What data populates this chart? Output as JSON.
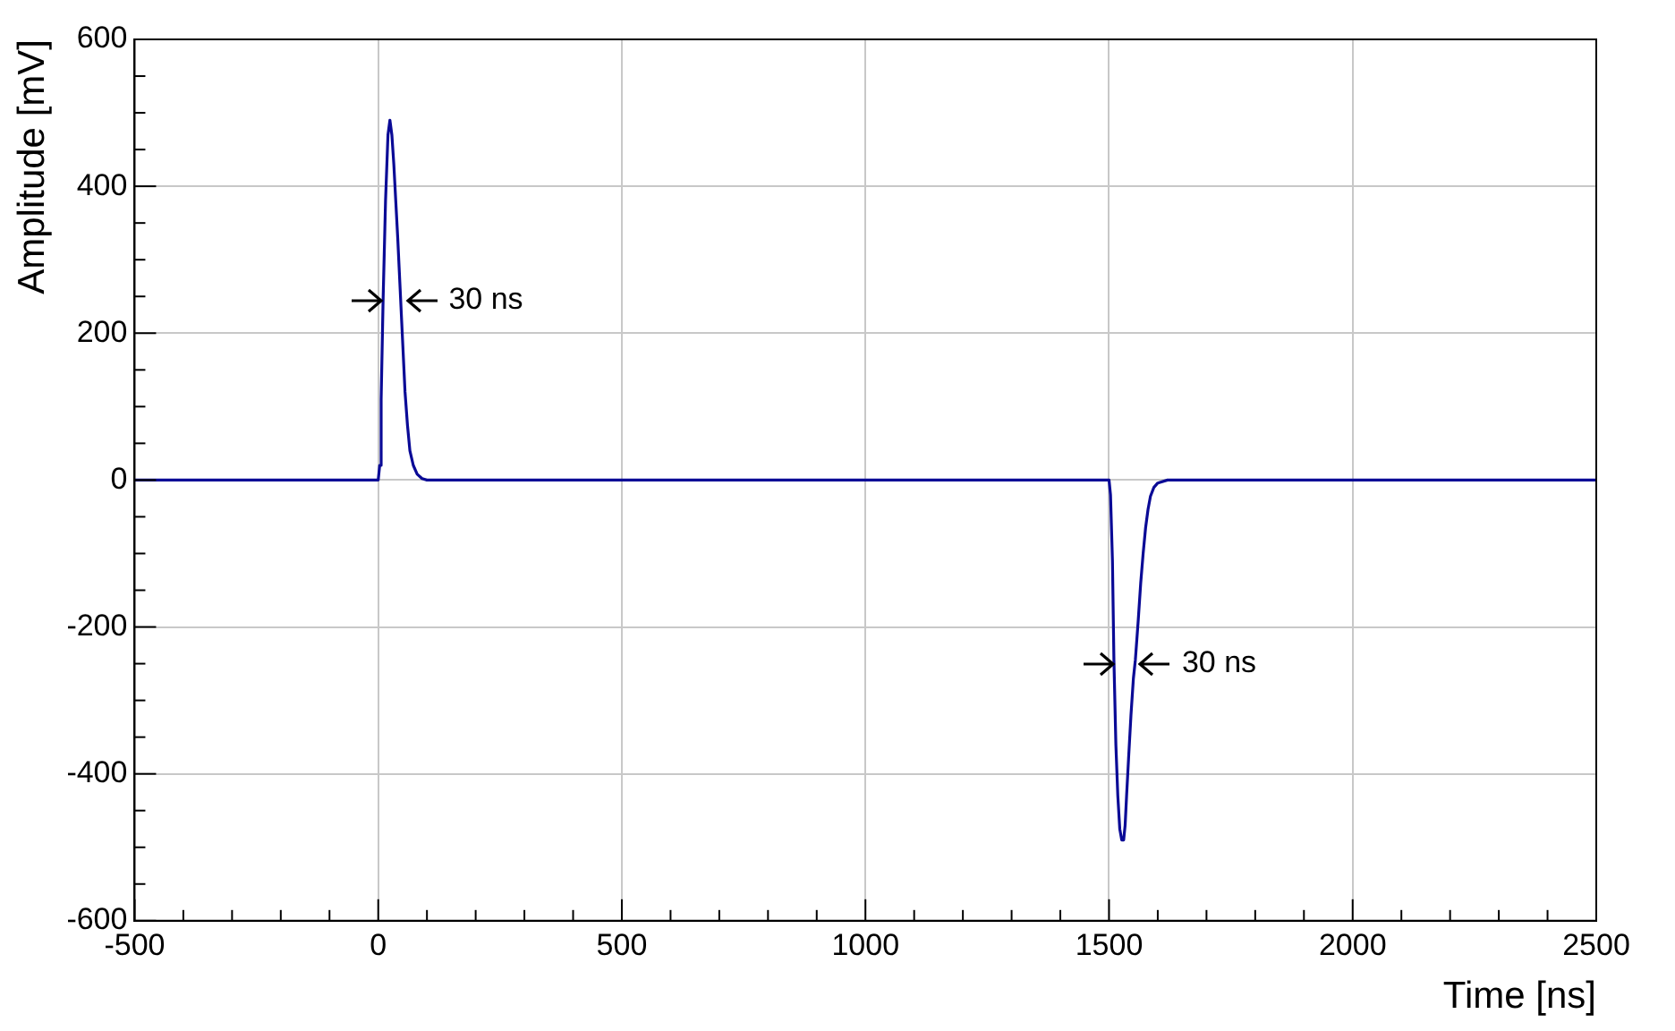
{
  "chart_data": {
    "type": "line",
    "xlabel": "Time [ns]",
    "ylabel": "Amplitude [mV]",
    "series": [
      {
        "color": "#0a0a96",
        "x": [
          -500,
          0,
          3,
          6,
          10,
          15,
          20,
          24,
          28,
          32,
          36,
          40,
          45,
          50,
          55,
          60,
          65,
          72,
          80,
          90,
          100,
          200,
          500,
          1000,
          1400,
          1500,
          1503,
          1507,
          1510,
          1514,
          1518,
          1522,
          1526,
          1530,
          1533,
          1536,
          1540,
          1545,
          1550,
          1554,
          1560,
          1565,
          1570,
          1575,
          1580,
          1585,
          1592,
          1600,
          1620,
          2000,
          2500
        ],
        "values": [
          0,
          0,
          20,
          110,
          245,
          380,
          470,
          490,
          470,
          430,
          380,
          330,
          260,
          190,
          120,
          75,
          40,
          20,
          8,
          2,
          0,
          0,
          0,
          0,
          0,
          0,
          -20,
          -110,
          -245,
          -360,
          -430,
          -475,
          -490,
          -490,
          -470,
          -430,
          -380,
          -320,
          -270,
          -245,
          -190,
          -140,
          -100,
          -65,
          -40,
          -22,
          -10,
          -4,
          0,
          0,
          0
        ]
      }
    ],
    "xlim": [
      -500,
      2500
    ],
    "ylim": [
      -600,
      600
    ],
    "xticks": [
      -500,
      {
        "value": -400,
        "label": null
      },
      {
        "value": -300,
        "label": null
      },
      {
        "value": -200,
        "label": null
      },
      {
        "value": -100,
        "label": null
      },
      0,
      {
        "value": 100,
        "label": null
      },
      {
        "value": 200,
        "label": null
      },
      {
        "value": 300,
        "label": null
      },
      {
        "value": 400,
        "label": null
      },
      500,
      {
        "value": 600,
        "label": null
      },
      {
        "value": 700,
        "label": null
      },
      {
        "value": 800,
        "label": null
      },
      {
        "value": 900,
        "label": null
      },
      1000,
      {
        "value": 1100,
        "label": null
      },
      {
        "value": 1200,
        "label": null
      },
      {
        "value": 1300,
        "label": null
      },
      {
        "value": 1400,
        "label": null
      },
      1500,
      {
        "value": 1600,
        "label": null
      },
      {
        "value": 1700,
        "label": null
      },
      {
        "value": 1800,
        "label": null
      },
      {
        "value": 1900,
        "label": null
      },
      2000,
      {
        "value": 2100,
        "label": null
      },
      {
        "value": 2200,
        "label": null
      },
      {
        "value": 2300,
        "label": null
      },
      {
        "value": 2400,
        "label": null
      },
      2500
    ],
    "yticks": [
      -600,
      {
        "value": -550,
        "label": null
      },
      {
        "value": -500,
        "label": null
      },
      {
        "value": -450,
        "label": null
      },
      -400,
      {
        "value": -350,
        "label": null
      },
      {
        "value": -300,
        "label": null
      },
      {
        "value": -250,
        "label": null
      },
      -200,
      {
        "value": -150,
        "label": null
      },
      {
        "value": -100,
        "label": null
      },
      {
        "value": -50,
        "label": null
      },
      0,
      {
        "value": 50,
        "label": null
      },
      {
        "value": 100,
        "label": null
      },
      {
        "value": 150,
        "label": null
      },
      200,
      {
        "value": 250,
        "label": null
      },
      {
        "value": 300,
        "label": null
      },
      {
        "value": 350,
        "label": null
      },
      400,
      {
        "value": 450,
        "label": null
      },
      {
        "value": 500,
        "label": null
      },
      {
        "value": 550,
        "label": null
      },
      600
    ],
    "grid": true,
    "legend": false,
    "marker": "none",
    "line_style": "solid",
    "annotations": [
      {
        "text": "30 ns",
        "x": 27,
        "y": 245
      },
      {
        "text": "30 ns",
        "x": 1532,
        "y": -250
      }
    ]
  }
}
